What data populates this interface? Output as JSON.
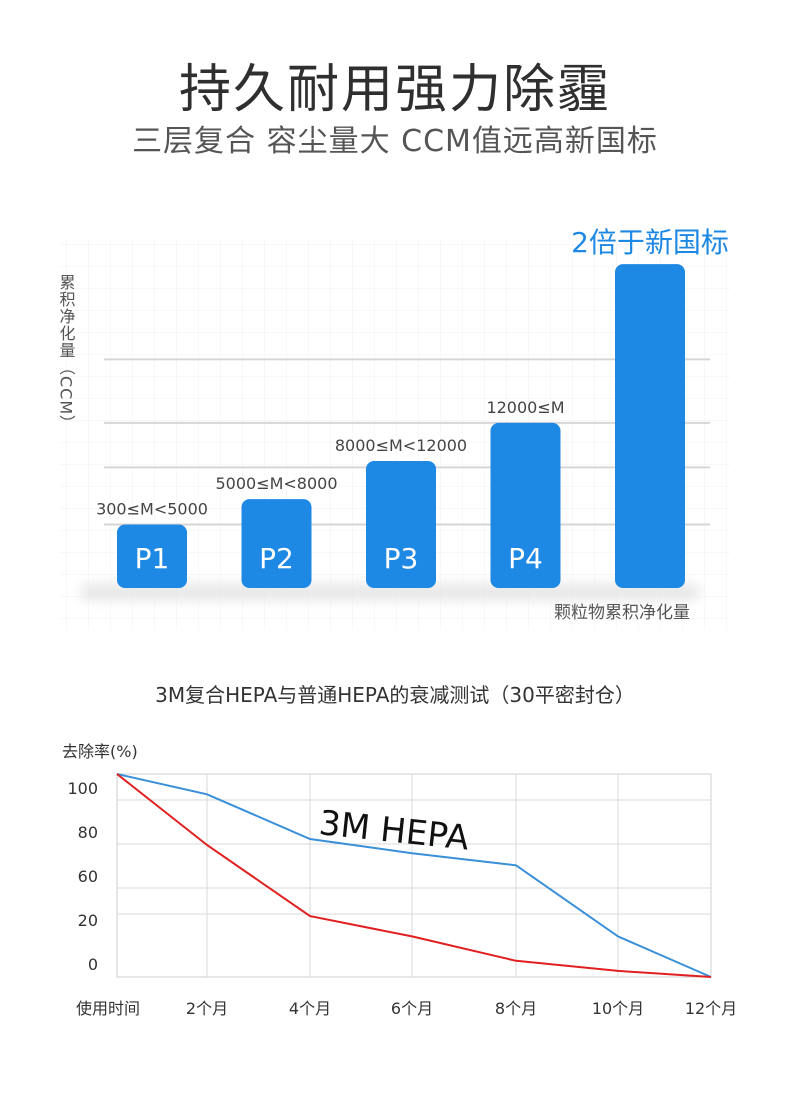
{
  "header": {
    "title": "持久耐用强力除霾",
    "subtitle": "三层复合 容尘量大 CCM值远高新国标"
  },
  "chart_data": [
    {
      "type": "bar",
      "categories": [
        "P1",
        "P2",
        "P3",
        "P4",
        ""
      ],
      "values": [
        1,
        1.4,
        2.0,
        2.6,
        5.1
      ],
      "range_labels": [
        "300≤M<5000",
        "5000≤M<8000",
        "8000≤M<12000",
        "12000≤M",
        ""
      ],
      "highlight_label": "2倍于新国标",
      "ylabel": "累积净化量（CCM）",
      "xlabel": "颗粒物累积净化量",
      "bar_color": "#1e88e5",
      "highlight_color": "#1e88e5",
      "grid": true
    },
    {
      "type": "line",
      "title": "3M复合HEPA与普通HEPA的衰减测试（30平密封仓）",
      "ylabel": "去除率(%)",
      "xlabel": "使用时间",
      "x": [
        "",
        "2个月",
        "4个月",
        "6个月",
        "8个月",
        "10个月",
        "12个月"
      ],
      "ytick_labels": [
        "100",
        "80",
        "60",
        "20",
        "0"
      ],
      "series": [
        {
          "name": "3M HEPA",
          "color": "#3a8fd9",
          "values": [
            100,
            90,
            68,
            61,
            55,
            20,
            0
          ]
        },
        {
          "color": "#e02020",
          "values": [
            100,
            65,
            30,
            20,
            8,
            3,
            0
          ]
        }
      ],
      "grid": true
    }
  ]
}
